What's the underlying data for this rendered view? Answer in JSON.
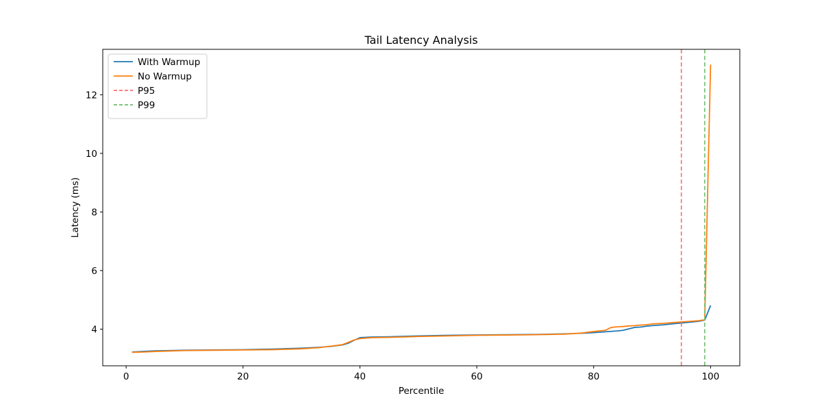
{
  "chart_data": {
    "type": "line",
    "title": "Tail Latency Analysis",
    "xlabel": "Percentile",
    "ylabel": "Latency (ms)",
    "xlim": [
      -4,
      105
    ],
    "ylim": [
      2.75,
      13.55
    ],
    "xticks": [
      0,
      20,
      40,
      60,
      80,
      100
    ],
    "yticks": [
      4,
      6,
      8,
      10,
      12
    ],
    "grid": false,
    "legend_position": "top-left",
    "series": [
      {
        "name": "With Warmup",
        "color": "#1f77b4",
        "style": "solid",
        "x": [
          1,
          3,
          5,
          10,
          15,
          20,
          25,
          30,
          33,
          35,
          37,
          38,
          39,
          40,
          42,
          45,
          50,
          55,
          60,
          65,
          70,
          75,
          78,
          80,
          82,
          84,
          85,
          86,
          87,
          88,
          89,
          90,
          92,
          94,
          96,
          98,
          99,
          100
        ],
        "y": [
          3.22,
          3.24,
          3.26,
          3.28,
          3.29,
          3.3,
          3.32,
          3.35,
          3.38,
          3.41,
          3.46,
          3.52,
          3.62,
          3.71,
          3.73,
          3.74,
          3.77,
          3.79,
          3.8,
          3.81,
          3.82,
          3.84,
          3.86,
          3.88,
          3.91,
          3.94,
          3.96,
          4.01,
          4.06,
          4.07,
          4.1,
          4.12,
          4.15,
          4.19,
          4.23,
          4.27,
          4.31,
          4.81
        ]
      },
      {
        "name": "No Warmup",
        "color": "#ff7f0e",
        "style": "solid",
        "x": [
          1,
          3,
          5,
          10,
          15,
          20,
          25,
          30,
          33,
          35,
          37,
          38,
          39,
          40,
          42,
          45,
          50,
          55,
          60,
          65,
          70,
          75,
          78,
          80,
          82,
          83,
          84,
          85,
          86,
          87,
          88,
          89,
          90,
          92,
          94,
          96,
          98,
          99,
          100
        ],
        "y": [
          3.21,
          3.22,
          3.24,
          3.27,
          3.28,
          3.29,
          3.3,
          3.33,
          3.37,
          3.42,
          3.47,
          3.55,
          3.63,
          3.68,
          3.71,
          3.72,
          3.75,
          3.77,
          3.79,
          3.8,
          3.81,
          3.83,
          3.87,
          3.92,
          3.96,
          4.06,
          4.08,
          4.09,
          4.11,
          4.12,
          4.14,
          4.15,
          4.18,
          4.2,
          4.23,
          4.26,
          4.29,
          4.32,
          13.03
        ]
      },
      {
        "name": "P95",
        "color": "#ff6b6b",
        "style": "dashed",
        "vertical_x": 95
      },
      {
        "name": "P99",
        "color": "#6dbf6d",
        "style": "dashed",
        "vertical_x": 99
      }
    ]
  }
}
